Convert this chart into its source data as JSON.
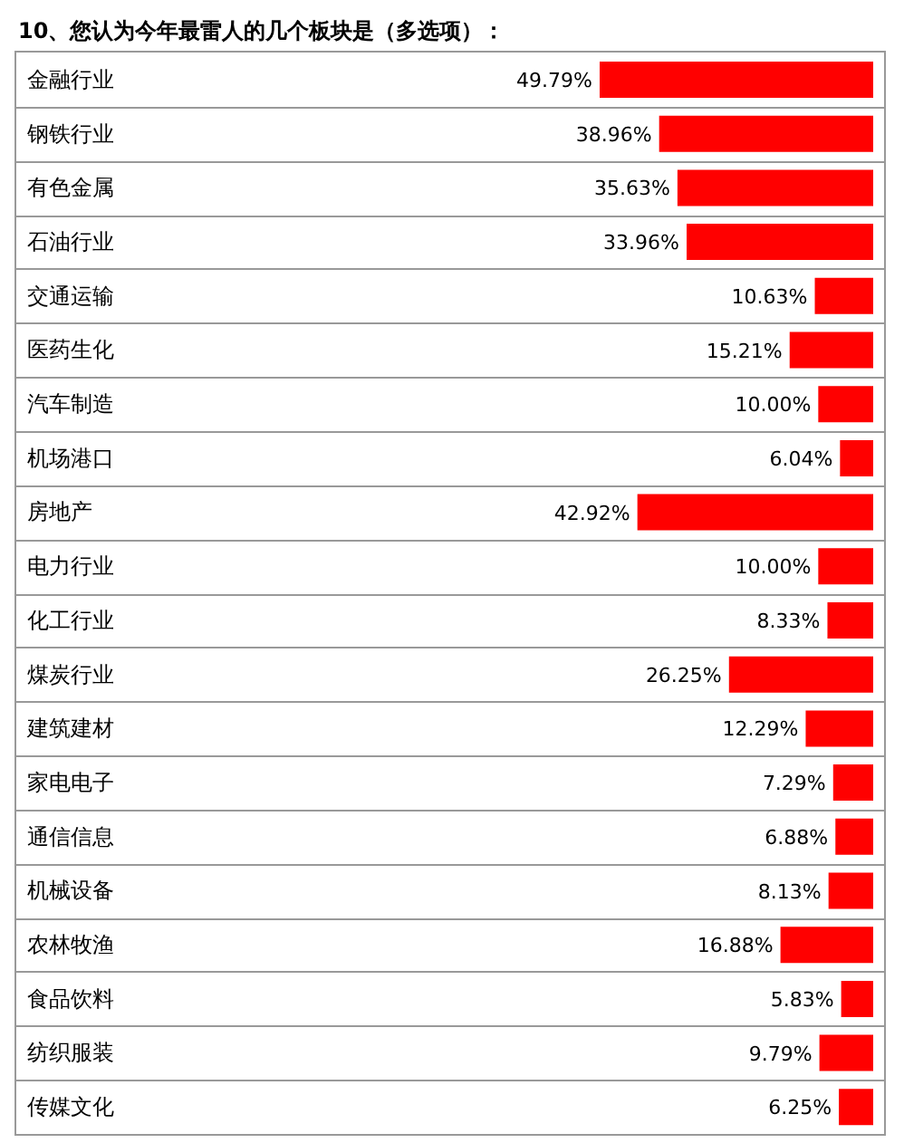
{
  "chart_data": {
    "type": "bar",
    "orientation": "horizontal",
    "title": "10、您认为今年最雷人的几个板块是（多选项）：",
    "categories": [
      "金融行业",
      "钢铁行业",
      "有色金属",
      "石油行业",
      "交通运输",
      "医药生化",
      "汽车制造",
      "机场港口",
      "房地产",
      "电力行业",
      "化工行业",
      "煤炭行业",
      "建筑建材",
      "家电电子",
      "通信信息",
      "机械设备",
      "农林牧渔",
      "食品饮料",
      "纺织服装",
      "传媒文化"
    ],
    "values": [
      49.79,
      38.96,
      35.63,
      33.96,
      10.63,
      15.21,
      10.0,
      6.04,
      42.92,
      10.0,
      8.33,
      26.25,
      12.29,
      7.29,
      6.88,
      8.13,
      16.88,
      5.83,
      9.79,
      6.25
    ],
    "value_labels": [
      "49.79%",
      "38.96%",
      "35.63%",
      "33.96%",
      "10.63%",
      "15.21%",
      "10.00%",
      "6.04%",
      "42.92%",
      "10.00%",
      "8.33%",
      "26.25%",
      "12.29%",
      "7.29%",
      "6.88%",
      "8.13%",
      "16.88%",
      "5.83%",
      "9.79%",
      "6.25%"
    ],
    "color": "#ff0000"
  }
}
